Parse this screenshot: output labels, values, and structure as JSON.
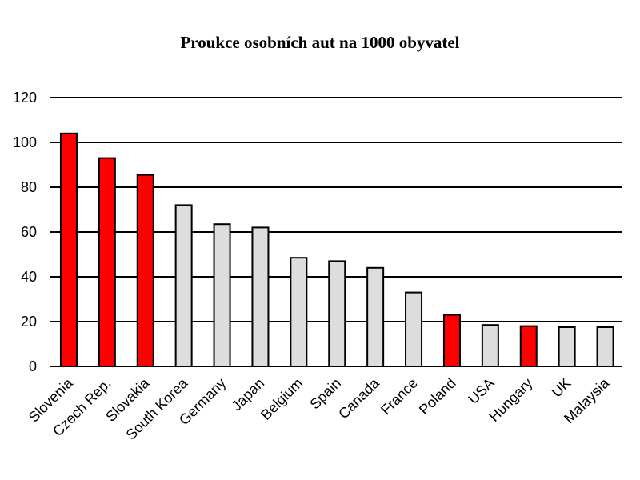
{
  "chart_data": {
    "type": "bar",
    "title": "Proukce osobních aut na 1000 obyvatel",
    "xlabel": "",
    "ylabel": "",
    "categories": [
      "Slovenia",
      "Czech Rep.",
      "Slovakia",
      "South Korea",
      "Germany",
      "Japan",
      "Belgium",
      "Spain",
      "Canada",
      "France",
      "Poland",
      "USA",
      "Hungary",
      "UK",
      "Malaysia"
    ],
    "values": [
      104,
      93,
      85.5,
      72,
      63.5,
      62,
      48.5,
      47,
      44,
      33,
      23,
      18.5,
      18,
      17.5,
      17.5
    ],
    "highlighted": [
      "Slovenia",
      "Czech Rep.",
      "Slovakia",
      "Poland",
      "Hungary"
    ],
    "ylim": [
      0,
      120
    ],
    "yticks": [
      "0",
      "20",
      "40",
      "60",
      "80",
      "100",
      "120"
    ],
    "grid": true,
    "legend": "none",
    "colors": {
      "highlight": "#ff0000",
      "default": "#dddddd",
      "edge": "#000000",
      "grid": "#000000"
    }
  }
}
